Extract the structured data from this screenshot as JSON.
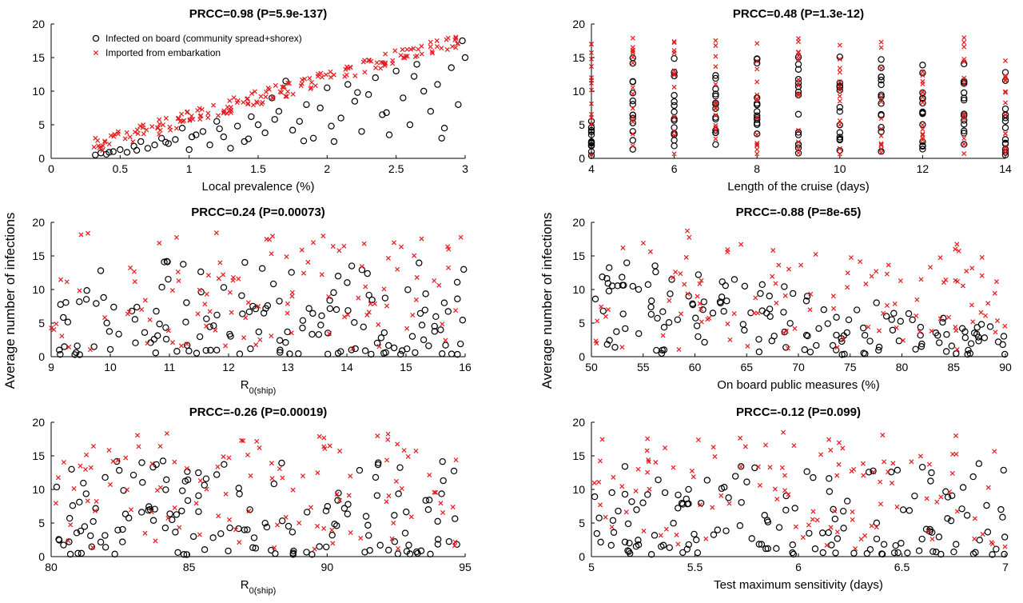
{
  "figure": {
    "ylabel_left": "Average number of infections",
    "ylabel_right": "Average number of infections"
  },
  "colors": {
    "infected": "#000000",
    "imported": "#e41a1c",
    "axis": "#000000"
  },
  "legend": {
    "infected": "Infected on board (community spread+shorex)",
    "imported": "Imported from embarkation"
  },
  "chart_data": [
    {
      "type": "scatter",
      "title": "PRCC=0.98 (P=5.9e-137)",
      "xlabel": "Local prevalence (%)",
      "xlim": [
        0,
        3
      ],
      "ylim": [
        0,
        20
      ],
      "xticks": [
        "0",
        "0.5",
        "1",
        "1.5",
        "2",
        "2.5",
        "3"
      ],
      "xtick_values": [
        0,
        0.5,
        1,
        1.5,
        2,
        2.5,
        3
      ],
      "yticks": [
        "0",
        "5",
        "10",
        "15",
        "20"
      ],
      "grid": false,
      "legend_position": "top-left",
      "pattern": "prevalence",
      "series": [
        {
          "name": "Infected on board (community spread+shorex)",
          "marker": "circle",
          "color": "#000000",
          "x": [
            0.32,
            0.36,
            0.4,
            0.45,
            0.5,
            0.55,
            0.6,
            0.65,
            0.7,
            0.75,
            0.8,
            0.85,
            0.9,
            0.95,
            1.0,
            1.05,
            1.1,
            1.15,
            1.2,
            1.25,
            1.3,
            1.35,
            1.4,
            1.45,
            1.5,
            1.55,
            1.6,
            1.65,
            1.7,
            1.75,
            1.8,
            1.85,
            1.9,
            1.95,
            2.0,
            2.05,
            2.1,
            2.15,
            2.2,
            2.25,
            2.3,
            2.35,
            2.4,
            2.45,
            2.5,
            2.55,
            2.6,
            2.65,
            2.7,
            2.75,
            2.8,
            2.85,
            2.9,
            2.95,
            3.0,
            0.42,
            0.62,
            0.83,
            1.02,
            1.22,
            1.43,
            1.62,
            1.83,
            2.03,
            2.22,
            2.43,
            2.63,
            2.83,
            2.98
          ],
          "y": [
            0.5,
            0.8,
            0.6,
            1.0,
            1.3,
            0.9,
            1.8,
            2.5,
            1.5,
            2.0,
            3.0,
            2.2,
            2.8,
            4.5,
            1.3,
            3.5,
            4.0,
            2.0,
            5.5,
            3.2,
            1.5,
            4.8,
            2.5,
            6.2,
            5.0,
            3.8,
            9.0,
            7.0,
            11.5,
            4.2,
            5.5,
            8.0,
            3.0,
            7.5,
            10.5,
            2.5,
            6.0,
            11.0,
            8.5,
            4.0,
            9.5,
            12.0,
            6.5,
            3.5,
            13.0,
            9.0,
            5.0,
            14.0,
            10.0,
            7.0,
            11.0,
            4.5,
            13.5,
            8.0,
            15.0,
            0.9,
            1.2,
            2.4,
            3.2,
            4.4,
            2.9,
            5.8,
            2.6,
            4.8,
            9.8,
            6.8,
            12.2,
            3.0,
            17.5
          ]
        },
        {
          "name": "Imported from embarkation",
          "marker": "x",
          "color": "#e41a1c",
          "x": [],
          "y": []
        }
      ]
    },
    {
      "type": "scatter",
      "title": "PRCC=0.48 (P=1.3e-12)",
      "xlabel": "Length of the cruise (days)",
      "xlim": [
        4,
        14
      ],
      "ylim": [
        0,
        20
      ],
      "xticks": [
        "4",
        "6",
        "8",
        "10",
        "12",
        "14"
      ],
      "xtick_values": [
        4,
        6,
        8,
        10,
        12,
        14
      ],
      "yticks": [
        "0",
        "5",
        "10",
        "15",
        "20"
      ],
      "grid": false,
      "pattern": "cruise"
    },
    {
      "type": "scatter",
      "title": "PRCC=0.24 (P=0.00073)",
      "xlabel": "R0(ship)",
      "xlabel_main": "R",
      "xlabel_sub": "0(ship)",
      "xlim": [
        9,
        16
      ],
      "ylim": [
        0,
        20
      ],
      "xticks": [
        "9",
        "10",
        "11",
        "12",
        "13",
        "14",
        "15",
        "16"
      ],
      "xtick_values": [
        9,
        10,
        11,
        12,
        13,
        14,
        15,
        16
      ],
      "yticks": [
        "0",
        "5",
        "10",
        "15",
        "20"
      ],
      "grid": false,
      "pattern": "random",
      "seed": 11
    },
    {
      "type": "scatter",
      "title": "PRCC=-0.88 (P=8e-65)",
      "xlabel": "On board public measures (%)",
      "xlim": [
        50,
        90
      ],
      "ylim": [
        0,
        20
      ],
      "xticks": [
        "50",
        "55",
        "60",
        "65",
        "70",
        "75",
        "80",
        "85",
        "90"
      ],
      "xtick_values": [
        50,
        55,
        60,
        65,
        70,
        75,
        80,
        85,
        90
      ],
      "yticks": [
        "0",
        "5",
        "10",
        "15",
        "20"
      ],
      "grid": false,
      "pattern": "decreasing",
      "seed": 23
    },
    {
      "type": "scatter",
      "title": "PRCC=-0.26 (P=0.00019)",
      "xlabel": "R0(ship)",
      "xlabel_main": "R",
      "xlabel_sub": "0(ship)",
      "xlim": [
        80,
        95
      ],
      "ylim": [
        0,
        20
      ],
      "xticks": [
        "80",
        "85",
        "90",
        "95"
      ],
      "xtick_values": [
        80,
        85,
        90,
        95
      ],
      "yticks": [
        "0",
        "5",
        "10",
        "15",
        "20"
      ],
      "grid": false,
      "pattern": "random",
      "seed": 37
    },
    {
      "type": "scatter",
      "title": "PRCC=-0.12 (P=0.099)",
      "xlabel": "Test maximum sensitivity (days)",
      "xlim": [
        5,
        7
      ],
      "ylim": [
        0,
        20
      ],
      "xticks": [
        "5",
        "5.5",
        "6",
        "6.5",
        "7"
      ],
      "xtick_values": [
        5,
        5.5,
        6,
        6.5,
        7
      ],
      "yticks": [
        "0",
        "5",
        "10",
        "15",
        "20"
      ],
      "grid": false,
      "pattern": "random",
      "seed": 53
    }
  ]
}
